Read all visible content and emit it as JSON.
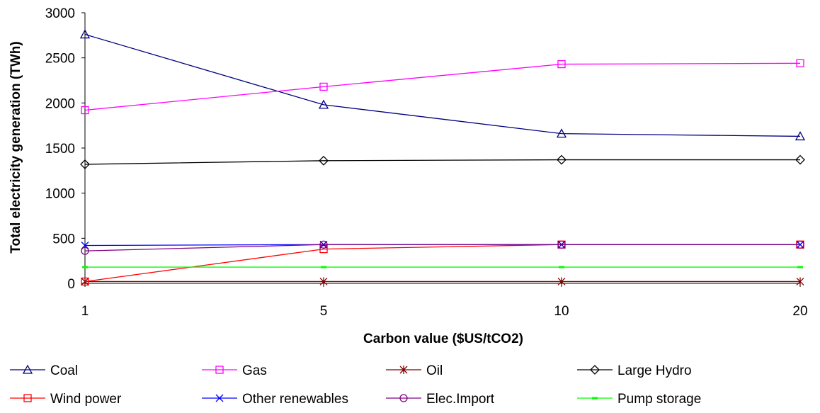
{
  "chart_data": {
    "type": "line",
    "title": "",
    "xlabel": "Carbon value ($US/tCO2)",
    "ylabel": "Total electricity generation (TWh)",
    "categories": [
      "1",
      "5",
      "10",
      "20"
    ],
    "ylim": [
      0,
      3000
    ],
    "yticks": [
      "0",
      "500",
      "1000",
      "1500",
      "2000",
      "2500",
      "3000"
    ],
    "grid": false,
    "legend_position": "bottom",
    "series": [
      {
        "name": "Coal",
        "values": [
          2760,
          1980,
          1660,
          1630
        ],
        "color": "#000080",
        "marker": "triangle"
      },
      {
        "name": "Gas",
        "values": [
          1920,
          2180,
          2430,
          2440
        ],
        "color": "#ff00ff",
        "marker": "square"
      },
      {
        "name": "Oil",
        "values": [
          20,
          20,
          20,
          20
        ],
        "color": "#800000",
        "marker": "asterisk"
      },
      {
        "name": "Large Hydro",
        "values": [
          1320,
          1360,
          1370,
          1370
        ],
        "color": "#000000",
        "marker": "diamond"
      },
      {
        "name": "Wind power",
        "values": [
          20,
          380,
          430,
          430
        ],
        "color": "#ff0000",
        "marker": "square"
      },
      {
        "name": "Other renewables",
        "values": [
          420,
          430,
          430,
          430
        ],
        "color": "#0000ff",
        "marker": "x"
      },
      {
        "name": "Elec.Import",
        "values": [
          360,
          430,
          430,
          430
        ],
        "color": "#800080",
        "marker": "circle"
      },
      {
        "name": "Pump storage",
        "values": [
          180,
          180,
          180,
          180
        ],
        "color": "#00ff00",
        "marker": "dash"
      }
    ]
  }
}
